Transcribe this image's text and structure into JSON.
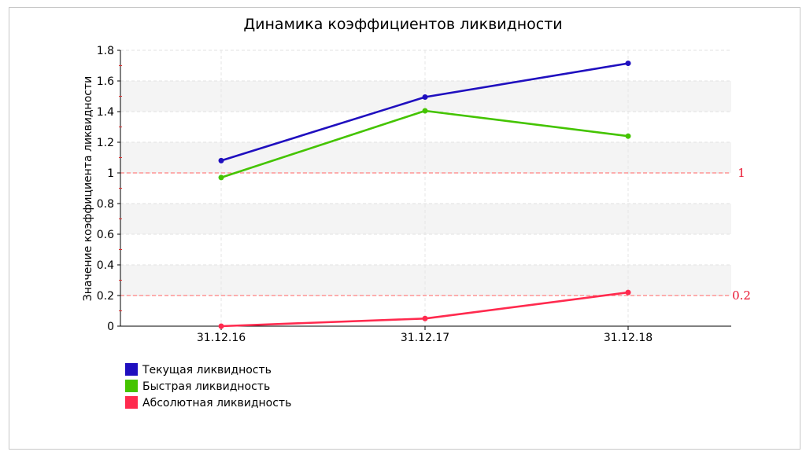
{
  "chart_data": {
    "type": "line",
    "title": "Динамика коэффициентов ликвидности",
    "xlabel": "",
    "ylabel": "Значение коэффициента ликвидности",
    "categories": [
      "31.12.16",
      "31.12.17",
      "31.12.18"
    ],
    "ylim": [
      0,
      1.8
    ],
    "yticks": [
      0,
      0.2,
      0.4,
      0.6,
      0.8,
      1,
      1.2,
      1.4,
      1.6,
      1.8
    ],
    "grid": true,
    "legend_position": "bottom-left",
    "series": [
      {
        "name": "Текущая ликвидность",
        "color": "#1f0fbf",
        "values": [
          1.08,
          1.495,
          1.715
        ]
      },
      {
        "name": "Быстрая ликвидность",
        "color": "#44c400",
        "values": [
          0.97,
          1.405,
          1.24
        ]
      },
      {
        "name": "Абсолютная ликвидность",
        "color": "#ff2a4e",
        "values": [
          0.0,
          0.05,
          0.22
        ]
      }
    ],
    "reference_lines": [
      {
        "value": 1,
        "label": "1",
        "color": "#ff8080"
      },
      {
        "value": 0.2,
        "label": "0.2",
        "color": "#ff8080"
      }
    ]
  }
}
